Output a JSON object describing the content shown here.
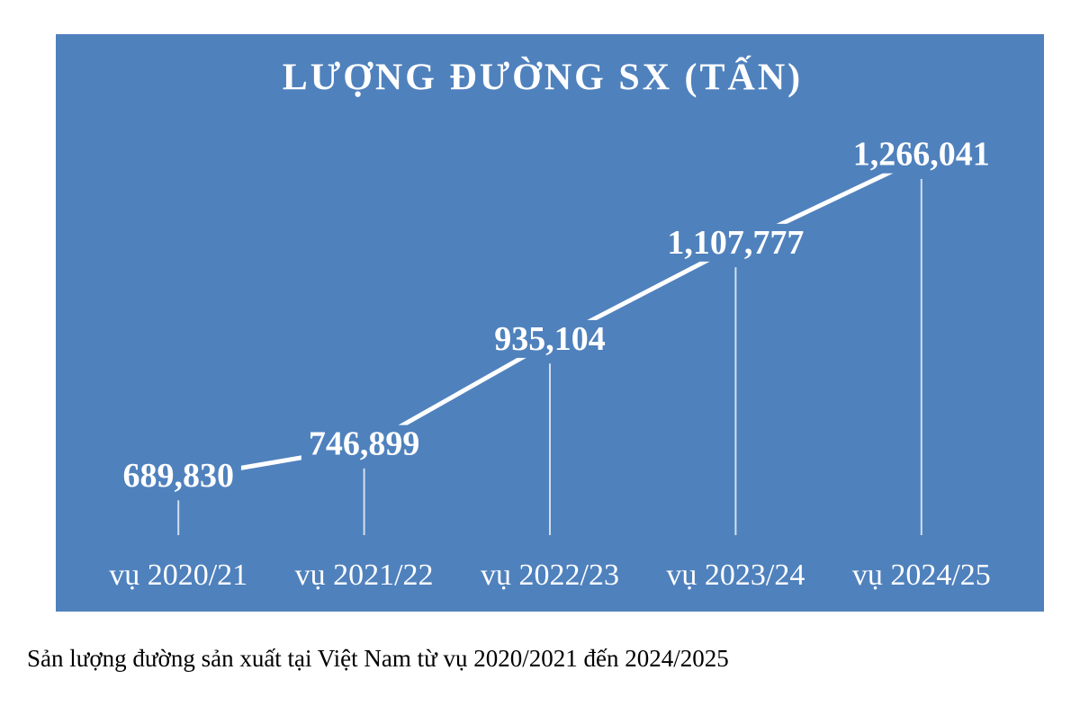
{
  "chart_data": {
    "type": "line",
    "title": "LƯỢNG ĐƯỜNG SX (TẤN)",
    "categories": [
      "vụ 2020/21",
      "vụ 2021/22",
      "vụ 2022/23",
      "vụ 2023/24",
      "vụ 2024/25"
    ],
    "values": [
      689830,
      746899,
      935104,
      1107777,
      1266041
    ],
    "value_labels": [
      "689,830",
      "746,899",
      "935,104",
      "1,107,777",
      "1,266,041"
    ],
    "color": "#ffffff",
    "background": "#4f81bd",
    "drop_lines": true,
    "caption": "Sản lượng đường sản xuất tại Việt Nam từ vụ 2020/2021 đến 2024/2025"
  }
}
